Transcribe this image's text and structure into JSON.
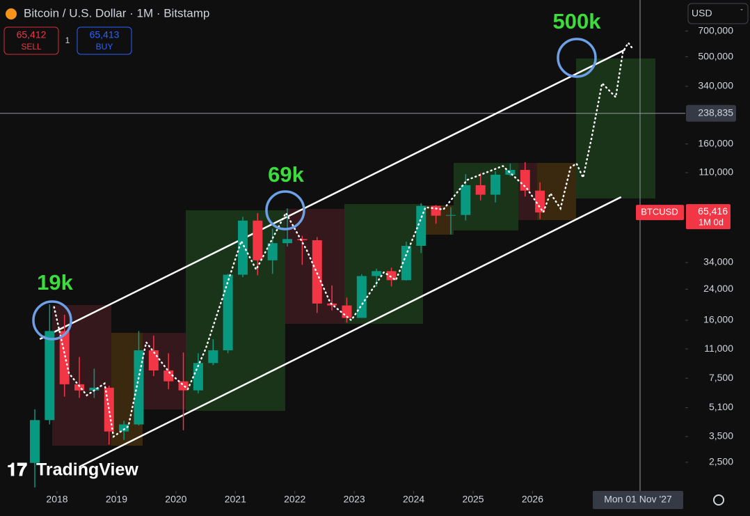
{
  "header": {
    "sell_price": "65,412",
    "sell_label": "SELL",
    "buy_price": "65,413",
    "buy_label": "BUY",
    "spread": "1",
    "currency": "USD",
    "logo": "TradingView"
  },
  "chart_data": {
    "type": "candlestick",
    "title": "Bitcoin / U.S. Dollar · 1M · Bitstamp",
    "log_scale": true,
    "up_color": "#089981",
    "down_color": "#f23645",
    "xlim": [
      2017.04,
      2028.57
    ],
    "xticks": [
      2018,
      2019,
      2020,
      2021,
      2022,
      2023,
      2024,
      2025,
      2026
    ],
    "ylim": [
      1720,
      1050000
    ],
    "yticks": [
      {
        "value": 700000,
        "label": "700,000"
      },
      {
        "value": 500000,
        "label": "500,000"
      },
      {
        "value": 340000,
        "label": "340,000"
      },
      {
        "value": 160000,
        "label": "160,000"
      },
      {
        "value": 110000,
        "label": "110,000"
      },
      {
        "value": 34000,
        "label": "34,000"
      },
      {
        "value": 24000,
        "label": "24,000"
      },
      {
        "value": 16000,
        "label": "16,000"
      },
      {
        "value": 11000,
        "label": "11,000"
      },
      {
        "value": 7500,
        "label": "7,500"
      },
      {
        "value": 5100,
        "label": "5,100"
      },
      {
        "value": 3500,
        "label": "3,500"
      },
      {
        "value": 2500,
        "label": "2,500"
      }
    ],
    "x": [
      2017.625,
      2017.875,
      2018.125,
      2018.375,
      2018.625,
      2018.875,
      2019.125,
      2019.375,
      2019.625,
      2019.875,
      2020.125,
      2020.375,
      2020.625,
      2020.875,
      2021.125,
      2021.375,
      2021.625,
      2021.875,
      2022.125,
      2022.375,
      2022.625,
      2022.875,
      2023.125,
      2023.375,
      2023.625,
      2023.875,
      2024.125,
      2024.375,
      2024.625,
      2024.875,
      2025.125,
      2025.375,
      2025.625,
      2025.875,
      2026.125
    ],
    "open": [
      2480,
      4340,
      13900,
      6930,
      6390,
      6625,
      3740,
      4100,
      10800,
      8300,
      7200,
      6400,
      9150,
      10800,
      29000,
      58800,
      35000,
      43800,
      46200,
      45500,
      19900,
      19400,
      16500,
      28500,
      30400,
      27000,
      42300,
      71300,
      62700,
      63300,
      93400,
      82500,
      107100,
      114000,
      87000
    ],
    "high": [
      5000,
      19700,
      17200,
      9900,
      8500,
      6800,
      4300,
      13900,
      13100,
      10400,
      10500,
      10400,
      12500,
      29300,
      61800,
      64900,
      52900,
      69000,
      48200,
      47400,
      25200,
      21500,
      29200,
      31400,
      31800,
      44700,
      73800,
      72000,
      70000,
      108000,
      109500,
      111900,
      124000,
      126000,
      97000
    ],
    "low": [
      1800,
      4100,
      5900,
      5800,
      5800,
      3150,
      3350,
      4050,
      7700,
      6500,
      3800,
      6150,
      8900,
      10400,
      28100,
      28800,
      29300,
      41900,
      33000,
      17600,
      18200,
      15500,
      16500,
      24800,
      24900,
      26900,
      38500,
      56500,
      49000,
      58900,
      76600,
      74500,
      105300,
      80500,
      60000
    ],
    "close": [
      4340,
      13900,
      6930,
      6390,
      6625,
      3740,
      4100,
      10800,
      8300,
      7200,
      6400,
      9150,
      10800,
      29000,
      58800,
      35000,
      43800,
      46200,
      45500,
      19900,
      19400,
      16500,
      28500,
      30400,
      27000,
      42300,
      71300,
      62700,
      63300,
      93400,
      82500,
      107100,
      114000,
      87000,
      65416
    ],
    "projection": {
      "color": "#ffffff",
      "x": [
        2017.95,
        2018.2,
        2018.5,
        2018.8,
        2018.95,
        2019.2,
        2019.5,
        2019.9,
        2020.2,
        2020.5,
        2021.1,
        2021.35,
        2021.85,
        2022.2,
        2022.6,
        2022.95,
        2023.5,
        2023.7,
        2024.2,
        2024.5,
        2024.9,
        2025.5,
        2025.9,
        2026.18,
        2026.3,
        2026.47,
        2026.64,
        2026.74,
        2026.85,
        2026.99,
        2027.17,
        2027.4,
        2027.52,
        2027.61,
        2027.7
      ],
      "values": [
        19000,
        8000,
        6000,
        7000,
        3500,
        4000,
        12000,
        8000,
        6500,
        11000,
        45000,
        31000,
        65000,
        40000,
        20000,
        16000,
        30000,
        27000,
        70000,
        68000,
        100000,
        120000,
        90000,
        65600,
        84000,
        69000,
        118000,
        124000,
        103000,
        171000,
        354000,
        295000,
        532000,
        600000,
        547000
      ]
    },
    "trendlines": [
      {
        "x": [
          2017.71,
          2027.55
        ],
        "values": [
          12500,
          547000
        ]
      },
      {
        "x": [
          2018.39,
          2027.49
        ],
        "values": [
          2370,
          80000
        ]
      }
    ],
    "annotations": [
      "19k",
      "69k",
      "500k"
    ],
    "crosshair": {
      "price": {
        "value": 238835,
        "label": "238,835"
      },
      "date": "Mon 01 Nov '27"
    },
    "last_price": {
      "symbol": "BTCUSD",
      "price": {
        "value": 65416,
        "label": "65,416"
      },
      "countdown": "1M 0d"
    }
  }
}
